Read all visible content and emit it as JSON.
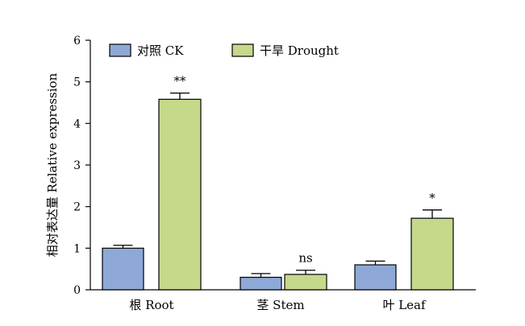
{
  "chart_data": {
    "type": "bar",
    "title": "",
    "xlabel": "",
    "ylabel": "相对表达量 Relative expression",
    "ylim": [
      0,
      6
    ],
    "yticks": [
      "0",
      "1",
      "2",
      "3",
      "4",
      "5",
      "6"
    ],
    "categories": [
      "根 Root",
      "茎 Stem",
      "叶 Leaf"
    ],
    "legend_position": "top-left",
    "series": [
      {
        "name": "对照 CK",
        "color": "#8ea9d8",
        "values": [
          1.0,
          0.3,
          0.6
        ],
        "errors": [
          0.07,
          0.09,
          0.09
        ]
      },
      {
        "name": "干旱 Drought",
        "color": "#c6d98a",
        "values": [
          4.58,
          0.37,
          1.72
        ],
        "errors": [
          0.15,
          0.1,
          0.2
        ]
      }
    ],
    "annotations": [
      "**",
      "ns",
      "*"
    ]
  }
}
